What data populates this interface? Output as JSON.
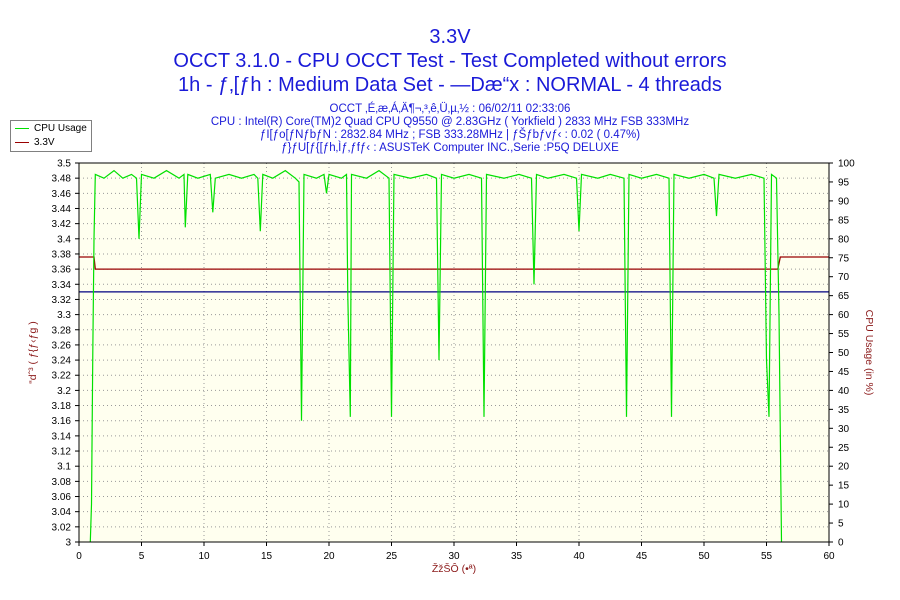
{
  "titles": {
    "title": "3.3V",
    "subtitle": "OCCT 3.1.0 - CPU OCCT Test - Test Completed without errors",
    "subtitle2": "1h - ƒ‚[ƒh : Medium Data Set - —Dæ“x : NORMAL - 4 threads"
  },
  "info_lines": [
    "OCCT ‚É‚æ‚Á‚Ä¶¬‚³‚ê‚Ü‚µ‚½ : 06/02/11 02:33:06",
    "CPU : Intel(R) Core(TM)2 Quad CPU Q9550 @ 2.83GHz ( Yorkfield ) 2833 MHz FSB 333MHz",
    "ƒI[ƒo[ƒNƒbƒN : 2832.84 MHz ; FSB 333.28MHz | ƒŠƒbƒvƒ‹ : 0.02 ( 0.47%)",
    "ƒ}ƒU[ƒ{[ƒh‚Ìƒ‚ƒfƒ‹ : ASUSTeK Computer INC.,Serie :P5Q DELUXE"
  ],
  "legend": [
    {
      "label": "CPU Usage",
      "color": "#00e000"
    },
    {
      "label": "3.3V",
      "color": "#990000"
    }
  ],
  "chart_data": {
    "type": "line",
    "x_label": "ŽžŠÔ (•ª)",
    "y_left_label": "“dˆ³ ( ƒ{ƒ‹ƒg )",
    "y_right_label": "CPU Usage (in %)",
    "x_range": [
      0,
      60
    ],
    "y_left_range": [
      3,
      3.5
    ],
    "y_right_range": [
      0,
      100
    ],
    "x_ticks": [
      0,
      5,
      10,
      15,
      20,
      25,
      30,
      35,
      40,
      45,
      50,
      55,
      60
    ],
    "y_left_ticks": [
      "3",
      "3.02",
      "3.04",
      "3.06",
      "3.08",
      "3.1",
      "3.12",
      "3.14",
      "3.16",
      "3.18",
      "3.2",
      "3.22",
      "3.24",
      "3.26",
      "3.28",
      "3.3",
      "3.32",
      "3.34",
      "3.36",
      "3.38",
      "3.4",
      "3.42",
      "3.44",
      "3.46",
      "3.48",
      "3.5"
    ],
    "y_right_ticks": [
      "0",
      "5",
      "10",
      "15",
      "20",
      "25",
      "30",
      "35",
      "40",
      "45",
      "50",
      "55",
      "60",
      "65",
      "70",
      "75",
      "80",
      "85",
      "90",
      "95",
      "100"
    ],
    "reference_line": {
      "value": 3.33,
      "color": "#000080"
    },
    "grid": true,
    "series": [
      {
        "name": "3.3V",
        "axis": "left",
        "color": "#990000",
        "points": [
          [
            0,
            3.376
          ],
          [
            1.2,
            3.376
          ],
          [
            1.3,
            3.36
          ],
          [
            55.9,
            3.36
          ],
          [
            56.1,
            3.376
          ],
          [
            60,
            3.376
          ]
        ]
      },
      {
        "name": "CPU Usage",
        "axis": "right",
        "color": "#00e000",
        "points": [
          [
            0.9,
            0
          ],
          [
            1.0,
            10
          ],
          [
            1.1,
            50
          ],
          [
            1.2,
            80
          ],
          [
            1.3,
            97
          ],
          [
            2.0,
            96
          ],
          [
            2.8,
            98
          ],
          [
            3.5,
            96
          ],
          [
            4.2,
            97
          ],
          [
            4.6,
            96
          ],
          [
            4.8,
            80
          ],
          [
            5.0,
            97
          ],
          [
            6.0,
            96
          ],
          [
            7.0,
            98
          ],
          [
            8.0,
            96
          ],
          [
            8.4,
            97
          ],
          [
            8.5,
            83
          ],
          [
            8.7,
            97
          ],
          [
            9.5,
            96
          ],
          [
            10.5,
            97
          ],
          [
            10.7,
            87
          ],
          [
            10.9,
            96
          ],
          [
            12.0,
            97
          ],
          [
            13.0,
            96
          ],
          [
            14.0,
            97
          ],
          [
            14.3,
            96
          ],
          [
            14.5,
            82
          ],
          [
            14.7,
            97
          ],
          [
            15.5,
            96
          ],
          [
            16.5,
            98
          ],
          [
            17.3,
            96
          ],
          [
            17.6,
            95
          ],
          [
            17.8,
            32
          ],
          [
            18.0,
            97
          ],
          [
            19.0,
            96
          ],
          [
            19.6,
            97
          ],
          [
            19.8,
            92
          ],
          [
            20.0,
            97
          ],
          [
            21.0,
            96
          ],
          [
            21.4,
            97
          ],
          [
            21.5,
            65
          ],
          [
            21.7,
            33
          ],
          [
            21.8,
            97
          ],
          [
            23.0,
            96
          ],
          [
            24.0,
            98
          ],
          [
            24.8,
            96
          ],
          [
            25.0,
            33
          ],
          [
            25.2,
            97
          ],
          [
            26.5,
            96
          ],
          [
            27.8,
            97
          ],
          [
            28.6,
            96
          ],
          [
            28.8,
            48
          ],
          [
            29.0,
            97
          ],
          [
            30.0,
            96
          ],
          [
            31.2,
            97
          ],
          [
            32.2,
            96
          ],
          [
            32.4,
            33
          ],
          [
            32.6,
            97
          ],
          [
            34.0,
            96
          ],
          [
            35.2,
            97
          ],
          [
            36.2,
            96
          ],
          [
            36.4,
            68
          ],
          [
            36.6,
            97
          ],
          [
            37.5,
            96
          ],
          [
            38.8,
            97
          ],
          [
            39.8,
            96
          ],
          [
            40.0,
            82
          ],
          [
            40.2,
            97
          ],
          [
            41.5,
            96
          ],
          [
            42.5,
            97
          ],
          [
            43.6,
            96
          ],
          [
            43.8,
            33
          ],
          [
            44.0,
            97
          ],
          [
            45.0,
            96
          ],
          [
            46.2,
            97
          ],
          [
            47.2,
            96
          ],
          [
            47.4,
            33
          ],
          [
            47.6,
            97
          ],
          [
            48.8,
            96
          ],
          [
            50.0,
            97
          ],
          [
            50.8,
            96
          ],
          [
            51.0,
            86
          ],
          [
            51.2,
            97
          ],
          [
            52.5,
            96
          ],
          [
            53.8,
            97
          ],
          [
            54.8,
            96
          ],
          [
            55.0,
            48
          ],
          [
            55.2,
            33
          ],
          [
            55.4,
            97
          ],
          [
            55.8,
            96
          ],
          [
            56.0,
            60
          ],
          [
            56.2,
            0
          ]
        ]
      }
    ]
  }
}
